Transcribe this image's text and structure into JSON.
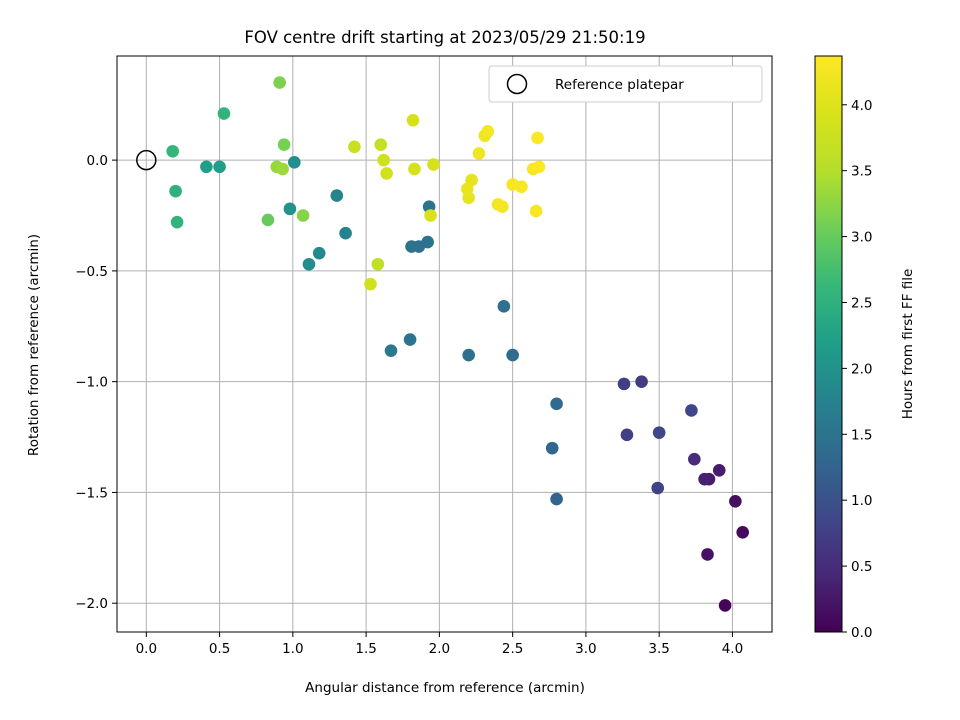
{
  "chart_data": {
    "type": "scatter",
    "title": "FOV centre drift starting at 2023/05/29 21:50:19",
    "xlabel": "Angular distance from reference (arcmin)",
    "ylabel": "Rotation from reference (arcmin)",
    "xlim": [
      -0.2,
      4.27
    ],
    "ylim": [
      -2.13,
      0.47
    ],
    "xticks": [
      0.0,
      0.5,
      1.0,
      1.5,
      2.0,
      2.5,
      3.0,
      3.5,
      4.0
    ],
    "xtick_labels": [
      "0.0",
      "0.5",
      "1.0",
      "1.5",
      "2.0",
      "2.5",
      "3.0",
      "3.5",
      "4.0"
    ],
    "yticks": [
      0.0,
      -0.5,
      -1.0,
      -1.5,
      -2.0
    ],
    "ytick_labels": [
      "0.0",
      "−0.5",
      "−1.0",
      "−1.5",
      "−2.0"
    ],
    "grid": true,
    "legend": {
      "placement": "upper-right",
      "entries": [
        "Reference platepar"
      ]
    },
    "reference_point": {
      "x": 0.0,
      "y": 0.0,
      "label": "Reference platepar"
    },
    "colorbar": {
      "label": "Hours from first FF file",
      "colormap": "viridis",
      "range": [
        0.0,
        4.37
      ],
      "ticks": [
        0.0,
        0.5,
        1.0,
        1.5,
        2.0,
        2.5,
        3.0,
        3.5,
        4.0
      ],
      "tick_labels": [
        "0.0",
        "0.5",
        "1.0",
        "1.5",
        "2.0",
        "2.5",
        "3.0",
        "3.5",
        "4.0"
      ]
    },
    "points": [
      {
        "x": 3.95,
        "y": -2.01,
        "hours": 0.05
      },
      {
        "x": 4.07,
        "y": -1.68,
        "hours": 0.1
      },
      {
        "x": 4.02,
        "y": -1.54,
        "hours": 0.15
      },
      {
        "x": 3.83,
        "y": -1.78,
        "hours": 0.2
      },
      {
        "x": 3.91,
        "y": -1.4,
        "hours": 0.3
      },
      {
        "x": 3.84,
        "y": -1.44,
        "hours": 0.3
      },
      {
        "x": 3.81,
        "y": -1.44,
        "hours": 0.35
      },
      {
        "x": 3.74,
        "y": -1.35,
        "hours": 0.5
      },
      {
        "x": 3.38,
        "y": -1.0,
        "hours": 0.7
      },
      {
        "x": 3.26,
        "y": -1.01,
        "hours": 0.75
      },
      {
        "x": 3.28,
        "y": -1.24,
        "hours": 0.75
      },
      {
        "x": 3.49,
        "y": -1.48,
        "hours": 0.8
      },
      {
        "x": 3.5,
        "y": -1.23,
        "hours": 0.85
      },
      {
        "x": 3.72,
        "y": -1.13,
        "hours": 0.85
      },
      {
        "x": 2.8,
        "y": -1.53,
        "hours": 1.25
      },
      {
        "x": 2.77,
        "y": -1.3,
        "hours": 1.3
      },
      {
        "x": 2.8,
        "y": -1.1,
        "hours": 1.35
      },
      {
        "x": 2.5,
        "y": -0.88,
        "hours": 1.4
      },
      {
        "x": 2.44,
        "y": -0.66,
        "hours": 1.45
      },
      {
        "x": 2.2,
        "y": -0.88,
        "hours": 1.45
      },
      {
        "x": 1.93,
        "y": -0.21,
        "hours": 1.5
      },
      {
        "x": 1.92,
        "y": -0.37,
        "hours": 1.5
      },
      {
        "x": 1.86,
        "y": -0.39,
        "hours": 1.45
      },
      {
        "x": 1.81,
        "y": -0.39,
        "hours": 1.5
      },
      {
        "x": 1.8,
        "y": -0.81,
        "hours": 1.55
      },
      {
        "x": 1.67,
        "y": -0.86,
        "hours": 1.6
      },
      {
        "x": 1.36,
        "y": -0.33,
        "hours": 1.75
      },
      {
        "x": 1.3,
        "y": -0.16,
        "hours": 1.8
      },
      {
        "x": 1.18,
        "y": -0.42,
        "hours": 1.85
      },
      {
        "x": 1.11,
        "y": -0.47,
        "hours": 1.9
      },
      {
        "x": 1.01,
        "y": -0.01,
        "hours": 1.95
      },
      {
        "x": 0.98,
        "y": -0.22,
        "hours": 2.0
      },
      {
        "x": 0.5,
        "y": -0.03,
        "hours": 2.2
      },
      {
        "x": 0.41,
        "y": -0.03,
        "hours": 2.2
      },
      {
        "x": 0.2,
        "y": -0.14,
        "hours": 2.5
      },
      {
        "x": 0.21,
        "y": -0.28,
        "hours": 2.55
      },
      {
        "x": 0.53,
        "y": 0.21,
        "hours": 2.55
      },
      {
        "x": 0.18,
        "y": 0.04,
        "hours": 2.6
      },
      {
        "x": 0.83,
        "y": -0.27,
        "hours": 3.0
      },
      {
        "x": 0.94,
        "y": 0.07,
        "hours": 3.1
      },
      {
        "x": 0.91,
        "y": 0.35,
        "hours": 3.15
      },
      {
        "x": 1.07,
        "y": -0.25,
        "hours": 3.2
      },
      {
        "x": 0.89,
        "y": -0.03,
        "hours": 3.3
      },
      {
        "x": 0.93,
        "y": -0.04,
        "hours": 3.35
      },
      {
        "x": 1.58,
        "y": -0.47,
        "hours": 3.65
      },
      {
        "x": 1.6,
        "y": 0.07,
        "hours": 3.7
      },
      {
        "x": 1.42,
        "y": 0.06,
        "hours": 3.75
      },
      {
        "x": 1.62,
        "y": 0.0,
        "hours": 3.8
      },
      {
        "x": 1.64,
        "y": -0.06,
        "hours": 3.85
      },
      {
        "x": 1.53,
        "y": -0.56,
        "hours": 3.85
      },
      {
        "x": 1.82,
        "y": 0.18,
        "hours": 3.9
      },
      {
        "x": 1.83,
        "y": -0.04,
        "hours": 3.9
      },
      {
        "x": 1.96,
        "y": -0.02,
        "hours": 3.9
      },
      {
        "x": 1.94,
        "y": -0.25,
        "hours": 3.95
      },
      {
        "x": 2.2,
        "y": -0.17,
        "hours": 4.1
      },
      {
        "x": 2.22,
        "y": -0.09,
        "hours": 4.1
      },
      {
        "x": 2.19,
        "y": -0.13,
        "hours": 4.15
      },
      {
        "x": 2.27,
        "y": 0.03,
        "hours": 4.2
      },
      {
        "x": 2.31,
        "y": 0.11,
        "hours": 4.2
      },
      {
        "x": 2.33,
        "y": 0.13,
        "hours": 4.25
      },
      {
        "x": 2.4,
        "y": -0.2,
        "hours": 4.25
      },
      {
        "x": 2.43,
        "y": -0.21,
        "hours": 4.25
      },
      {
        "x": 2.5,
        "y": -0.11,
        "hours": 4.3
      },
      {
        "x": 2.56,
        "y": -0.12,
        "hours": 4.3
      },
      {
        "x": 2.64,
        "y": -0.04,
        "hours": 4.3
      },
      {
        "x": 2.66,
        "y": -0.23,
        "hours": 4.3
      },
      {
        "x": 2.67,
        "y": 0.1,
        "hours": 4.35
      },
      {
        "x": 2.68,
        "y": -0.03,
        "hours": 4.35
      }
    ]
  }
}
